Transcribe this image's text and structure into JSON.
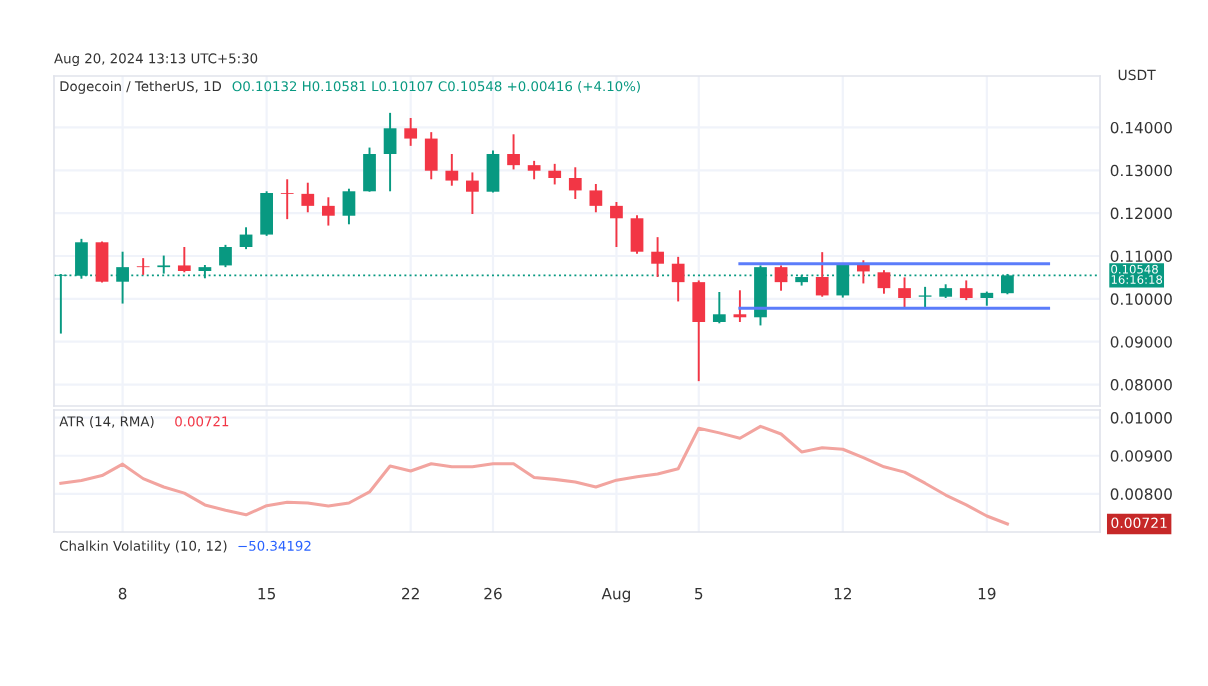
{
  "chart_data": [
    {
      "type": "candlestick",
      "title": "Dogecoin / TetherUS, 1D",
      "ylabel": "USDT",
      "tick_labels": "y",
      "grid": true,
      "annotations": [
        "Aug 20, 2024 13:13 UTC+5:30",
        "O0.10132 H0.10581 L0.10107 C0.10548 +0.00416 (+4.10%)"
      ],
      "xlim": [
        "2024-07-04T16:00",
        "2024-08-24T12:00"
      ],
      "xticks": [
        {
          "value": "2024-07-08",
          "label": null
        },
        {
          "value": "2024-07-15",
          "label": null
        },
        {
          "value": "2024-07-22",
          "label": null
        },
        {
          "value": "2024-07-26",
          "label": null
        },
        {
          "value": "2024-08-01",
          "label": null
        },
        {
          "value": "2024-08-05",
          "label": null
        },
        {
          "value": "2024-08-12",
          "label": null
        },
        {
          "value": "2024-08-19",
          "label": null
        }
      ],
      "ylim": [
        0.075,
        0.152
      ],
      "yticks": [
        {
          "value": 0.08,
          "label": "0.08000"
        },
        {
          "value": 0.09,
          "label": "0.09000"
        },
        {
          "value": 0.1,
          "label": "0.10000"
        },
        {
          "value": 0.11,
          "label": "0.11000"
        },
        {
          "value": 0.12,
          "label": "0.12000"
        },
        {
          "value": 0.13,
          "label": "0.13000"
        },
        {
          "value": 0.14,
          "label": "0.14000"
        }
      ],
      "ref_lines": [
        {
          "axis": "y",
          "value": 0.10548,
          "label": "0.10548\n16:16:18",
          "color": "#089981",
          "line_style": "dotted"
        }
      ],
      "x": [
        "2024-07-05",
        "2024-07-06",
        "2024-07-07",
        "2024-07-08",
        "2024-07-09",
        "2024-07-10",
        "2024-07-11",
        "2024-07-12",
        "2024-07-13",
        "2024-07-14",
        "2024-07-15",
        "2024-07-16",
        "2024-07-17",
        "2024-07-18",
        "2024-07-19",
        "2024-07-20",
        "2024-07-21",
        "2024-07-22",
        "2024-07-23",
        "2024-07-24",
        "2024-07-25",
        "2024-07-26",
        "2024-07-27",
        "2024-07-28",
        "2024-07-29",
        "2024-07-30",
        "2024-07-31",
        "2024-08-01",
        "2024-08-02",
        "2024-08-03",
        "2024-08-04",
        "2024-08-05",
        "2024-08-06",
        "2024-08-07",
        "2024-08-08",
        "2024-08-09",
        "2024-08-10",
        "2024-08-11",
        "2024-08-12",
        "2024-08-13",
        "2024-08-14",
        "2024-08-15",
        "2024-08-16",
        "2024-08-17",
        "2024-08-18",
        "2024-08-19",
        "2024-08-20"
      ],
      "ohlc": [
        [
          0.1054,
          0.1058,
          0.0919,
          0.1056
        ],
        [
          0.1054,
          0.114,
          0.1047,
          0.1132
        ],
        [
          0.1132,
          0.1134,
          0.1038,
          0.104
        ],
        [
          0.104,
          0.111,
          0.0989,
          0.1074
        ],
        [
          0.1076,
          0.1095,
          0.1056,
          0.1074
        ],
        [
          0.1074,
          0.1101,
          0.1059,
          0.1078
        ],
        [
          0.1078,
          0.1121,
          0.1062,
          0.1065
        ],
        [
          0.1065,
          0.1079,
          0.1048,
          0.1074
        ],
        [
          0.1078,
          0.1126,
          0.1074,
          0.1121
        ],
        [
          0.1121,
          0.1167,
          0.1116,
          0.115
        ],
        [
          0.115,
          0.1251,
          0.1147,
          0.1247
        ],
        [
          0.1247,
          0.1279,
          0.1186,
          0.1245
        ],
        [
          0.1245,
          0.1271,
          0.1202,
          0.1217
        ],
        [
          0.1217,
          0.1237,
          0.1171,
          0.1194
        ],
        [
          0.1194,
          0.1257,
          0.1174,
          0.1251
        ],
        [
          0.1251,
          0.1353,
          0.125,
          0.1338
        ],
        [
          0.1338,
          0.1434,
          0.1251,
          0.1398
        ],
        [
          0.1398,
          0.1422,
          0.1357,
          0.1374
        ],
        [
          0.1374,
          0.1389,
          0.1279,
          0.1299
        ],
        [
          0.1299,
          0.1338,
          0.1264,
          0.1276
        ],
        [
          0.1276,
          0.1295,
          0.1198,
          0.125
        ],
        [
          0.125,
          0.1346,
          0.1248,
          0.1338
        ],
        [
          0.1338,
          0.1384,
          0.1302,
          0.1312
        ],
        [
          0.1312,
          0.1322,
          0.1279,
          0.1299
        ],
        [
          0.1299,
          0.1315,
          0.1267,
          0.1282
        ],
        [
          0.1282,
          0.1307,
          0.1233,
          0.1253
        ],
        [
          0.1253,
          0.1268,
          0.1202,
          0.1217
        ],
        [
          0.1217,
          0.1226,
          0.1121,
          0.1188
        ],
        [
          0.1188,
          0.1195,
          0.1105,
          0.111
        ],
        [
          0.111,
          0.1144,
          0.1051,
          0.1082
        ],
        [
          0.1082,
          0.1098,
          0.0994,
          0.1039
        ],
        [
          0.1039,
          0.1043,
          0.0808,
          0.0946
        ],
        [
          0.0946,
          0.1016,
          0.0943,
          0.0964
        ],
        [
          0.0964,
          0.102,
          0.0946,
          0.0957
        ],
        [
          0.0957,
          0.1078,
          0.0938,
          0.1074
        ],
        [
          0.1074,
          0.1078,
          0.1019,
          0.1039
        ],
        [
          0.1039,
          0.1056,
          0.1031,
          0.1051
        ],
        [
          0.1051,
          0.1109,
          0.1005,
          0.1008
        ],
        [
          0.1008,
          0.1082,
          0.1003,
          0.1079
        ],
        [
          0.1079,
          0.109,
          0.1036,
          0.1064
        ],
        [
          0.1062,
          0.1067,
          0.1012,
          0.1025
        ],
        [
          0.1025,
          0.105,
          0.0978,
          0.1002
        ],
        [
          0.1005,
          0.1028,
          0.0978,
          0.1008
        ],
        [
          0.1005,
          0.1034,
          0.1002,
          0.1025
        ],
        [
          0.1025,
          0.1043,
          0.0997,
          0.1002
        ],
        [
          0.1002,
          0.1017,
          0.0984,
          0.1014
        ],
        [
          0.10132,
          0.10581,
          0.10107,
          0.10548
        ]
      ],
      "series": [
        {
          "type": "line",
          "color": "#5b7cfa",
          "x": [
            "2024-08-07",
            "2024-08-22"
          ],
          "values": [
            0.1082,
            0.1082
          ]
        },
        {
          "type": "line",
          "color": "#5b7cfa",
          "x": [
            "2024-08-07",
            "2024-08-22"
          ],
          "values": [
            0.0978,
            0.0978
          ]
        }
      ]
    },
    {
      "type": "line",
      "title": "ATR (14, RMA)",
      "grid": true,
      "annotations": [
        "0.00721",
        "0.00721"
      ],
      "xlim": [
        "2024-07-04T16:00",
        "2024-08-24T12:00"
      ],
      "xticks": [
        {
          "value": "2024-07-08",
          "label": "8"
        },
        {
          "value": "2024-07-15",
          "label": "15"
        },
        {
          "value": "2024-07-22",
          "label": "22"
        },
        {
          "value": "2024-07-26",
          "label": "26"
        },
        {
          "value": "2024-08-01",
          "label": "Aug"
        },
        {
          "value": "2024-08-05",
          "label": "5"
        },
        {
          "value": "2024-08-12",
          "label": "12"
        },
        {
          "value": "2024-08-19",
          "label": "19"
        }
      ],
      "ylim": [
        0.007,
        0.0102
      ],
      "yticks": [
        {
          "value": 0.008,
          "label": "0.00800"
        },
        {
          "value": 0.009,
          "label": "0.00900"
        },
        {
          "value": 0.01,
          "label": "0.01000"
        }
      ],
      "x": [
        "2024-07-05",
        "2024-07-06",
        "2024-07-07",
        "2024-07-08",
        "2024-07-09",
        "2024-07-10",
        "2024-07-11",
        "2024-07-12",
        "2024-07-13",
        "2024-07-14",
        "2024-07-15",
        "2024-07-16",
        "2024-07-17",
        "2024-07-18",
        "2024-07-19",
        "2024-07-20",
        "2024-07-21",
        "2024-07-22",
        "2024-07-23",
        "2024-07-24",
        "2024-07-25",
        "2024-07-26",
        "2024-07-27",
        "2024-07-28",
        "2024-07-29",
        "2024-07-30",
        "2024-07-31",
        "2024-08-01",
        "2024-08-02",
        "2024-08-03",
        "2024-08-04",
        "2024-08-05",
        "2024-08-06",
        "2024-08-07",
        "2024-08-08",
        "2024-08-09",
        "2024-08-10",
        "2024-08-11",
        "2024-08-12",
        "2024-08-13",
        "2024-08-14",
        "2024-08-15",
        "2024-08-16",
        "2024-08-17",
        "2024-08-18",
        "2024-08-19",
        "2024-08-20"
      ],
      "series": [
        {
          "color": "#f2a49f",
          "values": [
            0.00828,
            0.00835,
            0.00848,
            0.00878,
            0.0084,
            0.00818,
            0.00802,
            0.00771,
            0.00757,
            0.00745,
            0.00769,
            0.00778,
            0.00776,
            0.00768,
            0.00776,
            0.00805,
            0.00873,
            0.0086,
            0.00879,
            0.00871,
            0.00871,
            0.00879,
            0.00879,
            0.00843,
            0.00838,
            0.00831,
            0.00818,
            0.00836,
            0.00845,
            0.00852,
            0.00866,
            0.00972,
            0.0096,
            0.00946,
            0.00977,
            0.00957,
            0.0091,
            0.00921,
            0.00917,
            0.00895,
            0.00871,
            0.00857,
            0.00828,
            0.00797,
            0.00771,
            0.00742,
            0.00721
          ]
        }
      ]
    },
    {
      "type": "other",
      "title": "Chalkin Volatility (10, 12)",
      "annotations": [
        "−50.34192"
      ]
    }
  ]
}
